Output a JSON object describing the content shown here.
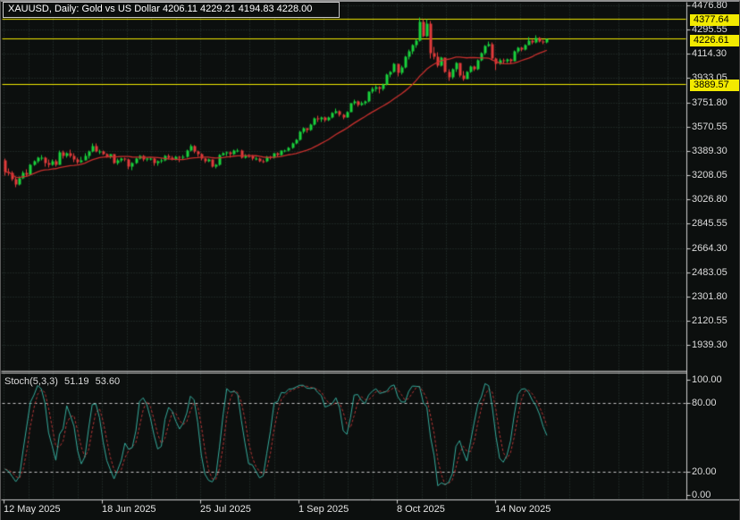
{
  "window": {
    "title": "XAUUSD, Daily:  Gold vs US Dollar  4206.11 4229.21 4194.83 4228.00"
  },
  "colors": {
    "background": "#0c0f0e",
    "grid": "#2c3c38",
    "bull_candle": "#19d23c",
    "bear_candle": "#e23b3b",
    "ma_line": "#c8302e",
    "hline_yellow": "#f2ea00",
    "tag_text": "#000000",
    "stoch_main": "#35ab9c",
    "stoch_signal": "#b23535",
    "stoch_levels": "#c8c8c8",
    "separator": "#d0d0d0",
    "axis_text": "#dcdcdc"
  },
  "chart_data": {
    "type": "candlestick",
    "symbol": "XAUUSD",
    "timeframe": "Daily",
    "description": "Gold vs US Dollar",
    "last_bar": {
      "open": "4206.11",
      "high": "4229.21",
      "low": "4194.83",
      "close": "4228.00"
    },
    "price_axis": {
      "ticks": [
        "4476.80",
        "4295.55",
        "4114.30",
        "3933.05",
        "3751.80",
        "3570.55",
        "3389.30",
        "3208.05",
        "3026.80",
        "2845.55",
        "2664.30",
        "2483.05",
        "2301.80",
        "2120.55",
        "1939.30"
      ],
      "tick_step": 181.25
    },
    "time_axis": {
      "labels": [
        "12 May 2025",
        "18 Jun 2025",
        "25 Jul 2025",
        "1 Sep 2025",
        "8 Oct 2025",
        "14 Nov 2025"
      ]
    },
    "hlines": [
      {
        "price": 4377.64,
        "label": "4377.64"
      },
      {
        "price": 4226.61,
        "label": "4226.61"
      },
      {
        "price": 3889.57,
        "label": "3889.57"
      }
    ],
    "candles": [
      [
        3325,
        3332,
        3208,
        3236
      ],
      [
        3236,
        3265,
        3207,
        3230
      ],
      [
        3230,
        3240,
        3168,
        3180
      ],
      [
        3180,
        3195,
        3121,
        3140
      ],
      [
        3140,
        3205,
        3132,
        3188
      ],
      [
        3188,
        3240,
        3180,
        3230
      ],
      [
        3230,
        3252,
        3204,
        3215
      ],
      [
        3215,
        3298,
        3210,
        3288
      ],
      [
        3288,
        3325,
        3280,
        3315
      ],
      [
        3315,
        3346,
        3300,
        3340
      ],
      [
        3340,
        3365,
        3322,
        3342
      ],
      [
        3342,
        3350,
        3276,
        3300
      ],
      [
        3300,
        3330,
        3270,
        3288
      ],
      [
        3288,
        3326,
        3280,
        3318
      ],
      [
        3318,
        3330,
        3272,
        3290
      ],
      [
        3290,
        3397,
        3288,
        3380
      ],
      [
        3380,
        3392,
        3333,
        3353
      ],
      [
        3353,
        3384,
        3341,
        3373
      ],
      [
        3373,
        3403,
        3343,
        3352
      ],
      [
        3352,
        3375,
        3310,
        3331
      ],
      [
        3331,
        3343,
        3293,
        3311
      ],
      [
        3311,
        3348,
        3301,
        3323
      ],
      [
        3323,
        3377,
        3319,
        3355
      ],
      [
        3355,
        3398,
        3337,
        3386
      ],
      [
        3386,
        3446,
        3381,
        3432
      ],
      [
        3432,
        3451,
        3383,
        3388
      ],
      [
        3388,
        3403,
        3366,
        3389
      ],
      [
        3389,
        3395,
        3363,
        3369
      ],
      [
        3369,
        3373,
        3340,
        3350
      ],
      [
        3350,
        3370,
        3335,
        3368
      ],
      [
        3368,
        3370,
        3295,
        3300
      ],
      [
        3300,
        3332,
        3287,
        3322
      ],
      [
        3322,
        3345,
        3310,
        3333
      ],
      [
        3333,
        3339,
        3312,
        3328
      ],
      [
        3328,
        3334,
        3255,
        3274
      ],
      [
        3274,
        3310,
        3246,
        3303
      ],
      [
        3303,
        3345,
        3298,
        3338
      ],
      [
        3338,
        3365,
        3330,
        3357
      ],
      [
        3357,
        3360,
        3312,
        3326
      ],
      [
        3326,
        3345,
        3318,
        3336
      ],
      [
        3336,
        3343,
        3325,
        3337
      ],
      [
        3337,
        3340,
        3283,
        3301
      ],
      [
        3301,
        3320,
        3282,
        3313
      ],
      [
        3313,
        3332,
        3305,
        3323
      ],
      [
        3323,
        3362,
        3317,
        3356
      ],
      [
        3356,
        3368,
        3331,
        3343
      ],
      [
        3343,
        3352,
        3320,
        3329
      ],
      [
        3329,
        3355,
        3322,
        3347
      ],
      [
        3347,
        3356,
        3309,
        3339
      ],
      [
        3339,
        3360,
        3330,
        3350
      ],
      [
        3350,
        3402,
        3344,
        3396
      ],
      [
        3396,
        3439,
        3390,
        3432
      ],
      [
        3432,
        3437,
        3378,
        3387
      ],
      [
        3387,
        3395,
        3350,
        3368
      ],
      [
        3368,
        3372,
        3325,
        3336
      ],
      [
        3336,
        3342,
        3301,
        3314
      ],
      [
        3314,
        3334,
        3306,
        3327
      ],
      [
        3327,
        3330,
        3268,
        3275
      ],
      [
        3275,
        3298,
        3262,
        3290
      ],
      [
        3290,
        3369,
        3282,
        3363
      ],
      [
        3363,
        3385,
        3355,
        3373
      ],
      [
        3373,
        3390,
        3358,
        3381
      ],
      [
        3381,
        3389,
        3345,
        3370
      ],
      [
        3370,
        3405,
        3362,
        3397
      ],
      [
        3397,
        3408,
        3380,
        3398
      ],
      [
        3398,
        3402,
        3332,
        3345
      ],
      [
        3345,
        3367,
        3335,
        3358
      ],
      [
        3358,
        3370,
        3342,
        3355
      ],
      [
        3355,
        3362,
        3323,
        3335
      ],
      [
        3335,
        3347,
        3322,
        3336
      ],
      [
        3336,
        3340,
        3309,
        3317
      ],
      [
        3317,
        3330,
        3302,
        3315
      ],
      [
        3315,
        3353,
        3308,
        3348
      ],
      [
        3348,
        3357,
        3328,
        3341
      ],
      [
        3341,
        3378,
        3335,
        3372
      ],
      [
        3372,
        3380,
        3350,
        3365
      ],
      [
        3365,
        3398,
        3358,
        3393
      ],
      [
        3393,
        3404,
        3383,
        3397
      ],
      [
        3397,
        3423,
        3390,
        3415
      ],
      [
        3415,
        3453,
        3408,
        3448
      ],
      [
        3448,
        3482,
        3440,
        3476
      ],
      [
        3476,
        3540,
        3470,
        3533
      ],
      [
        3533,
        3567,
        3524,
        3559
      ],
      [
        3559,
        3565,
        3526,
        3547
      ],
      [
        3547,
        3595,
        3540,
        3587
      ],
      [
        3587,
        3641,
        3582,
        3636
      ],
      [
        3636,
        3659,
        3612,
        3626
      ],
      [
        3626,
        3648,
        3610,
        3641
      ],
      [
        3641,
        3652,
        3607,
        3620
      ],
      [
        3620,
        3650,
        3613,
        3643
      ],
      [
        3643,
        3685,
        3638,
        3679
      ],
      [
        3679,
        3707,
        3670,
        3689
      ],
      [
        3689,
        3695,
        3650,
        3660
      ],
      [
        3660,
        3672,
        3628,
        3644
      ],
      [
        3644,
        3690,
        3640,
        3685
      ],
      [
        3685,
        3752,
        3680,
        3747
      ],
      [
        3747,
        3775,
        3738,
        3764
      ],
      [
        3764,
        3770,
        3722,
        3736
      ],
      [
        3736,
        3762,
        3728,
        3749
      ],
      [
        3749,
        3770,
        3735,
        3760
      ],
      [
        3760,
        3838,
        3755,
        3833
      ],
      [
        3833,
        3872,
        3820,
        3858
      ],
      [
        3858,
        3880,
        3838,
        3866
      ],
      [
        3866,
        3875,
        3820,
        3856
      ],
      [
        3856,
        3896,
        3845,
        3886
      ],
      [
        3886,
        3968,
        3880,
        3960
      ],
      [
        3960,
        3990,
        3942,
        3983
      ],
      [
        3983,
        4048,
        3975,
        4040
      ],
      [
        4040,
        4045,
        3947,
        3975
      ],
      [
        3975,
        4032,
        3960,
        4018
      ],
      [
        4018,
        4100,
        4010,
        4094
      ],
      [
        4094,
        4150,
        4078,
        4133
      ],
      [
        4133,
        4190,
        4115,
        4181
      ],
      [
        4181,
        4228,
        4160,
        4216
      ],
      [
        4216,
        4392,
        4210,
        4356
      ],
      [
        4356,
        4375,
        4240,
        4252
      ],
      [
        4252,
        4378,
        4245,
        4345
      ],
      [
        4345,
        4360,
        4082,
        4121
      ],
      [
        4121,
        4170,
        4075,
        4098
      ],
      [
        4098,
        4130,
        4015,
        4030
      ],
      [
        4030,
        4095,
        4022,
        4088
      ],
      [
        4088,
        4092,
        3975,
        3985
      ],
      [
        3985,
        4000,
        3913,
        3940
      ],
      [
        3940,
        4012,
        3932,
        4005
      ],
      [
        4005,
        4055,
        3985,
        4048
      ],
      [
        4048,
        4052,
        3945,
        3958
      ],
      [
        3958,
        3990,
        3915,
        3932
      ],
      [
        3932,
        3992,
        3928,
        3985
      ],
      [
        3985,
        4028,
        3978,
        4020
      ],
      [
        4020,
        4032,
        3988,
        4002
      ],
      [
        4002,
        4075,
        3998,
        4070
      ],
      [
        4070,
        4128,
        4062,
        4120
      ],
      [
        4120,
        4180,
        4112,
        4175
      ],
      [
        4175,
        4211,
        4168,
        4192
      ],
      [
        4192,
        4200,
        4068,
        4082
      ],
      [
        4082,
        4090,
        3998,
        4044
      ],
      [
        4044,
        4080,
        4036,
        4072
      ],
      [
        4072,
        4082,
        4045,
        4060
      ],
      [
        4060,
        4085,
        4050,
        4077
      ],
      [
        4077,
        4082,
        4041,
        4065
      ],
      [
        4065,
        4140,
        4060,
        4135
      ],
      [
        4135,
        4170,
        4125,
        4163
      ],
      [
        4163,
        4168,
        4138,
        4152
      ],
      [
        4152,
        4190,
        4145,
        4185
      ],
      [
        4185,
        4245,
        4180,
        4215
      ],
      [
        4215,
        4222,
        4188,
        4205
      ],
      [
        4205,
        4255,
        4198,
        4234
      ],
      [
        4234,
        4240,
        4200,
        4212
      ],
      [
        4212,
        4225,
        4190,
        4206
      ],
      [
        4206.11,
        4229.21,
        4194.83,
        4228.0
      ]
    ],
    "stoch": {
      "name": "Stoch(5,3,3)",
      "k_value": "51.19",
      "d_value": "53.60",
      "levels": [
        "100.00",
        "80.00",
        "20.00",
        "0.00"
      ],
      "level_values": [
        100,
        80,
        20,
        0
      ]
    }
  }
}
